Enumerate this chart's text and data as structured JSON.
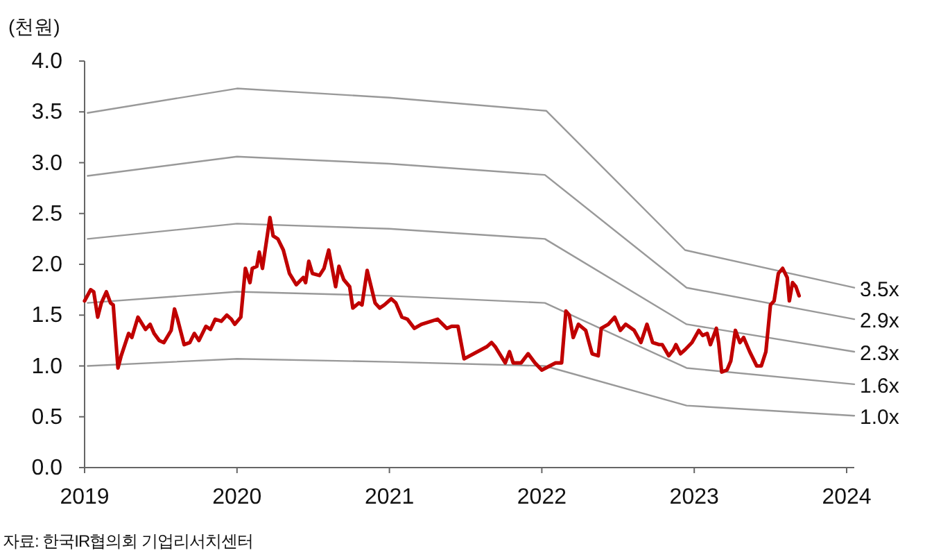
{
  "chart_data": {
    "type": "line",
    "ylabel": "(천원)",
    "annotations": [
      "자료: 한국IR협의회 기업리서치센터"
    ],
    "xlim": [
      2019,
      2024.05
    ],
    "xticks": [
      2019,
      2020,
      2021,
      2022,
      2023,
      2024
    ],
    "ylim": [
      0,
      4
    ],
    "yticks": [
      {
        "value": 0,
        "label": "0.0"
      },
      {
        "value": 0.5,
        "label": "0.5"
      },
      {
        "value": 1,
        "label": "1.0"
      },
      {
        "value": 1.5,
        "label": "1.5"
      },
      {
        "value": 2,
        "label": "2.0"
      },
      {
        "value": 2.5,
        "label": "2.5"
      },
      {
        "value": 3,
        "label": "3.0"
      },
      {
        "value": 3.5,
        "label": "3.5"
      },
      {
        "value": 4,
        "label": "4.0"
      }
    ],
    "series": [
      {
        "name": "3.5x",
        "color": "#999999",
        "x": [
          2019.02,
          2020.0,
          2021.0,
          2022.03,
          2022.94,
          2024.05
        ],
        "values": [
          3.49,
          3.73,
          3.64,
          3.51,
          2.14,
          1.77
        ]
      },
      {
        "name": "2.9x",
        "color": "#999999",
        "x": [
          2019.02,
          2020.0,
          2021.0,
          2022.02,
          2022.95,
          2024.05
        ],
        "values": [
          2.87,
          3.06,
          2.99,
          2.88,
          1.77,
          1.46
        ]
      },
      {
        "name": "2.3x",
        "color": "#999999",
        "x": [
          2019.02,
          2020.0,
          2021.0,
          2022.02,
          2022.95,
          2024.05
        ],
        "values": [
          2.25,
          2.4,
          2.35,
          2.25,
          1.41,
          1.14
        ]
      },
      {
        "name": "1.6x",
        "color": "#999999",
        "x": [
          2019.02,
          2020.0,
          2021.0,
          2022.02,
          2022.95,
          2024.05
        ],
        "values": [
          1.62,
          1.73,
          1.69,
          1.62,
          0.98,
          0.82
        ]
      },
      {
        "name": "1.0x",
        "color": "#999999",
        "x": [
          2019.02,
          2020.0,
          2021.0,
          2022.02,
          2022.95,
          2024.05
        ],
        "values": [
          1.0,
          1.07,
          1.04,
          1.0,
          0.61,
          0.51
        ]
      },
      {
        "color": "#c00000",
        "x": [
          2019.0,
          2019.04,
          2019.06,
          2019.086,
          2019.11,
          2019.143,
          2019.17,
          2019.188,
          2019.219,
          2019.24,
          2019.289,
          2019.31,
          2019.35,
          2019.4,
          2019.43,
          2019.456,
          2019.49,
          2019.52,
          2019.568,
          2019.59,
          2019.61,
          2019.653,
          2019.69,
          2019.72,
          2019.75,
          2019.796,
          2019.826,
          2019.857,
          2019.897,
          2019.933,
          2019.963,
          2019.985,
          2020.025,
          2020.055,
          2020.085,
          2020.1,
          2020.13,
          2020.146,
          2020.167,
          2020.216,
          2020.237,
          2020.268,
          2020.304,
          2020.344,
          2020.389,
          2020.435,
          2020.45,
          2020.471,
          2020.495,
          2020.541,
          2020.571,
          2020.602,
          2020.647,
          2020.669,
          2020.7,
          2020.739,
          2020.76,
          2020.8,
          2020.82,
          2020.854,
          2020.906,
          2020.936,
          2020.966,
          2021.012,
          2021.042,
          2021.082,
          2021.118,
          2021.164,
          2021.21,
          2021.316,
          2021.377,
          2021.408,
          2021.45,
          2021.49,
          2021.64,
          2021.67,
          2021.694,
          2021.76,
          2021.788,
          2021.812,
          2021.864,
          2021.91,
          2021.955,
          2022.0,
          2022.09,
          2022.13,
          2022.158,
          2022.18,
          2022.206,
          2022.24,
          2022.288,
          2022.33,
          2022.37,
          2022.39,
          2022.436,
          2022.478,
          2022.515,
          2022.55,
          2022.606,
          2022.65,
          2022.69,
          2022.727,
          2022.77,
          2022.79,
          2022.833,
          2022.864,
          2022.88,
          2022.91,
          2022.94,
          2022.985,
          2023.03,
          2023.055,
          2023.085,
          2023.106,
          2023.145,
          2023.16,
          2023.18,
          2023.215,
          2023.24,
          2023.27,
          2023.3,
          2023.324,
          2023.364,
          2023.41,
          2023.44,
          2023.47,
          2023.5,
          2023.524,
          2023.552,
          2023.58,
          2023.61,
          2023.624,
          2023.645,
          2023.667,
          2023.688
        ],
        "values": [
          1.64,
          1.75,
          1.73,
          1.48,
          1.62,
          1.73,
          1.62,
          1.6,
          0.98,
          1.1,
          1.32,
          1.28,
          1.48,
          1.36,
          1.41,
          1.32,
          1.25,
          1.23,
          1.35,
          1.56,
          1.46,
          1.21,
          1.23,
          1.32,
          1.25,
          1.39,
          1.36,
          1.46,
          1.44,
          1.5,
          1.46,
          1.41,
          1.48,
          1.96,
          1.82,
          1.96,
          1.98,
          2.12,
          1.96,
          2.46,
          2.28,
          2.25,
          2.14,
          1.91,
          1.8,
          1.87,
          1.82,
          2.03,
          1.91,
          1.89,
          1.96,
          2.14,
          1.78,
          1.98,
          1.85,
          1.78,
          1.57,
          1.62,
          1.6,
          1.94,
          1.62,
          1.57,
          1.6,
          1.66,
          1.62,
          1.48,
          1.46,
          1.37,
          1.41,
          1.46,
          1.37,
          1.39,
          1.39,
          1.07,
          1.19,
          1.23,
          1.19,
          1.03,
          1.14,
          1.03,
          1.03,
          1.12,
          1.03,
          0.96,
          1.03,
          1.03,
          1.54,
          1.5,
          1.28,
          1.41,
          1.35,
          1.12,
          1.1,
          1.37,
          1.41,
          1.48,
          1.35,
          1.41,
          1.35,
          1.23,
          1.41,
          1.23,
          1.21,
          1.21,
          1.1,
          1.16,
          1.21,
          1.12,
          1.16,
          1.23,
          1.35,
          1.3,
          1.32,
          1.21,
          1.37,
          1.23,
          0.94,
          0.96,
          1.05,
          1.35,
          1.23,
          1.28,
          1.14,
          1.0,
          1.0,
          1.14,
          1.6,
          1.64,
          1.91,
          1.96,
          1.87,
          1.64,
          1.82,
          1.78,
          1.69
        ]
      }
    ]
  }
}
